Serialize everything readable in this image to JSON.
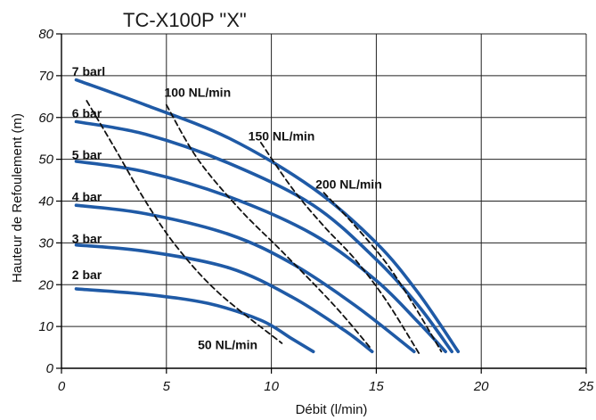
{
  "chart_data": {
    "type": "line",
    "title": "TC-X100P \"X\"",
    "xlabel": "Débit (l/min)",
    "ylabel": "Hauteur de Refoulement (m)",
    "xlim": [
      0,
      25
    ],
    "ylim": [
      0,
      80
    ],
    "xticks": [
      0,
      5,
      10,
      15,
      20,
      25
    ],
    "yticks": [
      0,
      10,
      20,
      30,
      40,
      50,
      60,
      70,
      80
    ],
    "grid": true,
    "colors": {
      "pressure": "#1f5aa6",
      "air": "#111111",
      "grid": "#222222"
    },
    "series": [
      {
        "name": "7 barl",
        "style": "solid",
        "x": [
          0.7,
          4,
          8,
          12,
          15,
          17,
          18.9
        ],
        "y": [
          69,
          63,
          55,
          43,
          30,
          18,
          4
        ]
      },
      {
        "name": "6 bar",
        "style": "solid",
        "x": [
          0.7,
          4,
          8,
          12,
          15,
          17,
          18.6
        ],
        "y": [
          59,
          56,
          49,
          39,
          26,
          15,
          4
        ]
      },
      {
        "name": "5 bar",
        "style": "solid",
        "x": [
          0.7,
          4,
          8,
          12,
          15,
          17,
          18.3
        ],
        "y": [
          49.5,
          47,
          41,
          32,
          21,
          11,
          4
        ]
      },
      {
        "name": "4 bar",
        "style": "solid",
        "x": [
          0.7,
          4,
          8,
          11,
          14,
          16.8
        ],
        "y": [
          39,
          37,
          32,
          25,
          15,
          4
        ]
      },
      {
        "name": "3 bar",
        "style": "solid",
        "x": [
          0.7,
          4,
          8,
          11,
          13.5,
          14.8
        ],
        "y": [
          29.5,
          28,
          24,
          17,
          9,
          4
        ]
      },
      {
        "name": "2 bar",
        "style": "solid",
        "x": [
          0.7,
          4,
          7,
          9.5,
          11,
          12
        ],
        "y": [
          19,
          17.7,
          15.5,
          11.5,
          7,
          4
        ]
      },
      {
        "name": "50 NL/min",
        "style": "dashed",
        "x": [
          1.2,
          2.5,
          4,
          5.5,
          7.5,
          10.5
        ],
        "y": [
          64,
          53,
          40,
          29,
          18,
          6
        ]
      },
      {
        "name": "100 NL/min",
        "style": "dashed",
        "x": [
          5,
          6.5,
          8.5,
          10.5,
          13,
          14.7
        ],
        "y": [
          63,
          50,
          38,
          28,
          15,
          5
        ]
      },
      {
        "name": "150 NL/min",
        "style": "dashed",
        "x": [
          9.5,
          11,
          12.5,
          14,
          15.5,
          17.1
        ],
        "y": [
          54,
          43,
          34,
          26,
          16,
          3
        ]
      },
      {
        "name": "200 NL/min",
        "style": "dashed",
        "x": [
          12.5,
          14,
          15.5,
          16.8,
          18.1
        ],
        "y": [
          42,
          34,
          25,
          15,
          4
        ]
      }
    ],
    "labels": [
      {
        "text": "7 barl",
        "x": 0.5,
        "y": 70
      },
      {
        "text": "6 bar",
        "x": 0.5,
        "y": 60
      },
      {
        "text": "5 bar",
        "x": 0.5,
        "y": 50
      },
      {
        "text": "4 bar",
        "x": 0.5,
        "y": 40
      },
      {
        "text": "3 bar",
        "x": 0.5,
        "y": 30
      },
      {
        "text": "2 bar",
        "x": 0.5,
        "y": 21.3
      },
      {
        "text": "100 NL/min",
        "x": 4.9,
        "y": 65
      },
      {
        "text": "150 NL/min",
        "x": 8.9,
        "y": 54.5
      },
      {
        "text": "200 NL/min",
        "x": 12.1,
        "y": 43
      },
      {
        "text": "50 NL/min",
        "x": 6.5,
        "y": 4.6
      }
    ]
  }
}
